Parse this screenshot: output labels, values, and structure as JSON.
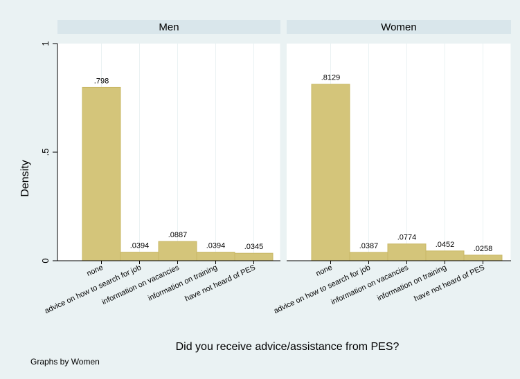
{
  "chart_data": {
    "type": "bar",
    "ylabel": "Density",
    "xlabel": "Did you receive advice/assistance from PES?",
    "note": "Graphs by Women",
    "ylim": [
      0,
      1
    ],
    "yticks": [
      {
        "value": 0,
        "label": "0"
      },
      {
        "value": 0.5,
        "label": ".5"
      },
      {
        "value": 1,
        "label": "1"
      }
    ],
    "categories": [
      "none",
      "advice on how to search for job",
      "information on vacancies",
      "information on training",
      "have not heard of PES"
    ],
    "grid": true,
    "legend": "none",
    "bar_color": "#d4c57a",
    "bar_edge_color": "#c9b866",
    "background_color": "#eaf2f3",
    "panel_header_color": "#d9e6eb",
    "panels": [
      {
        "title": "Men",
        "values": [
          0.798,
          0.0394,
          0.0887,
          0.0394,
          0.0345
        ],
        "labels": [
          ".798",
          ".0394",
          ".0887",
          ".0394",
          ".0345"
        ]
      },
      {
        "title": "Women",
        "values": [
          0.8129,
          0.0387,
          0.0774,
          0.0452,
          0.0258
        ],
        "labels": [
          ".8129",
          ".0387",
          ".0774",
          ".0452",
          ".0258"
        ]
      }
    ]
  }
}
